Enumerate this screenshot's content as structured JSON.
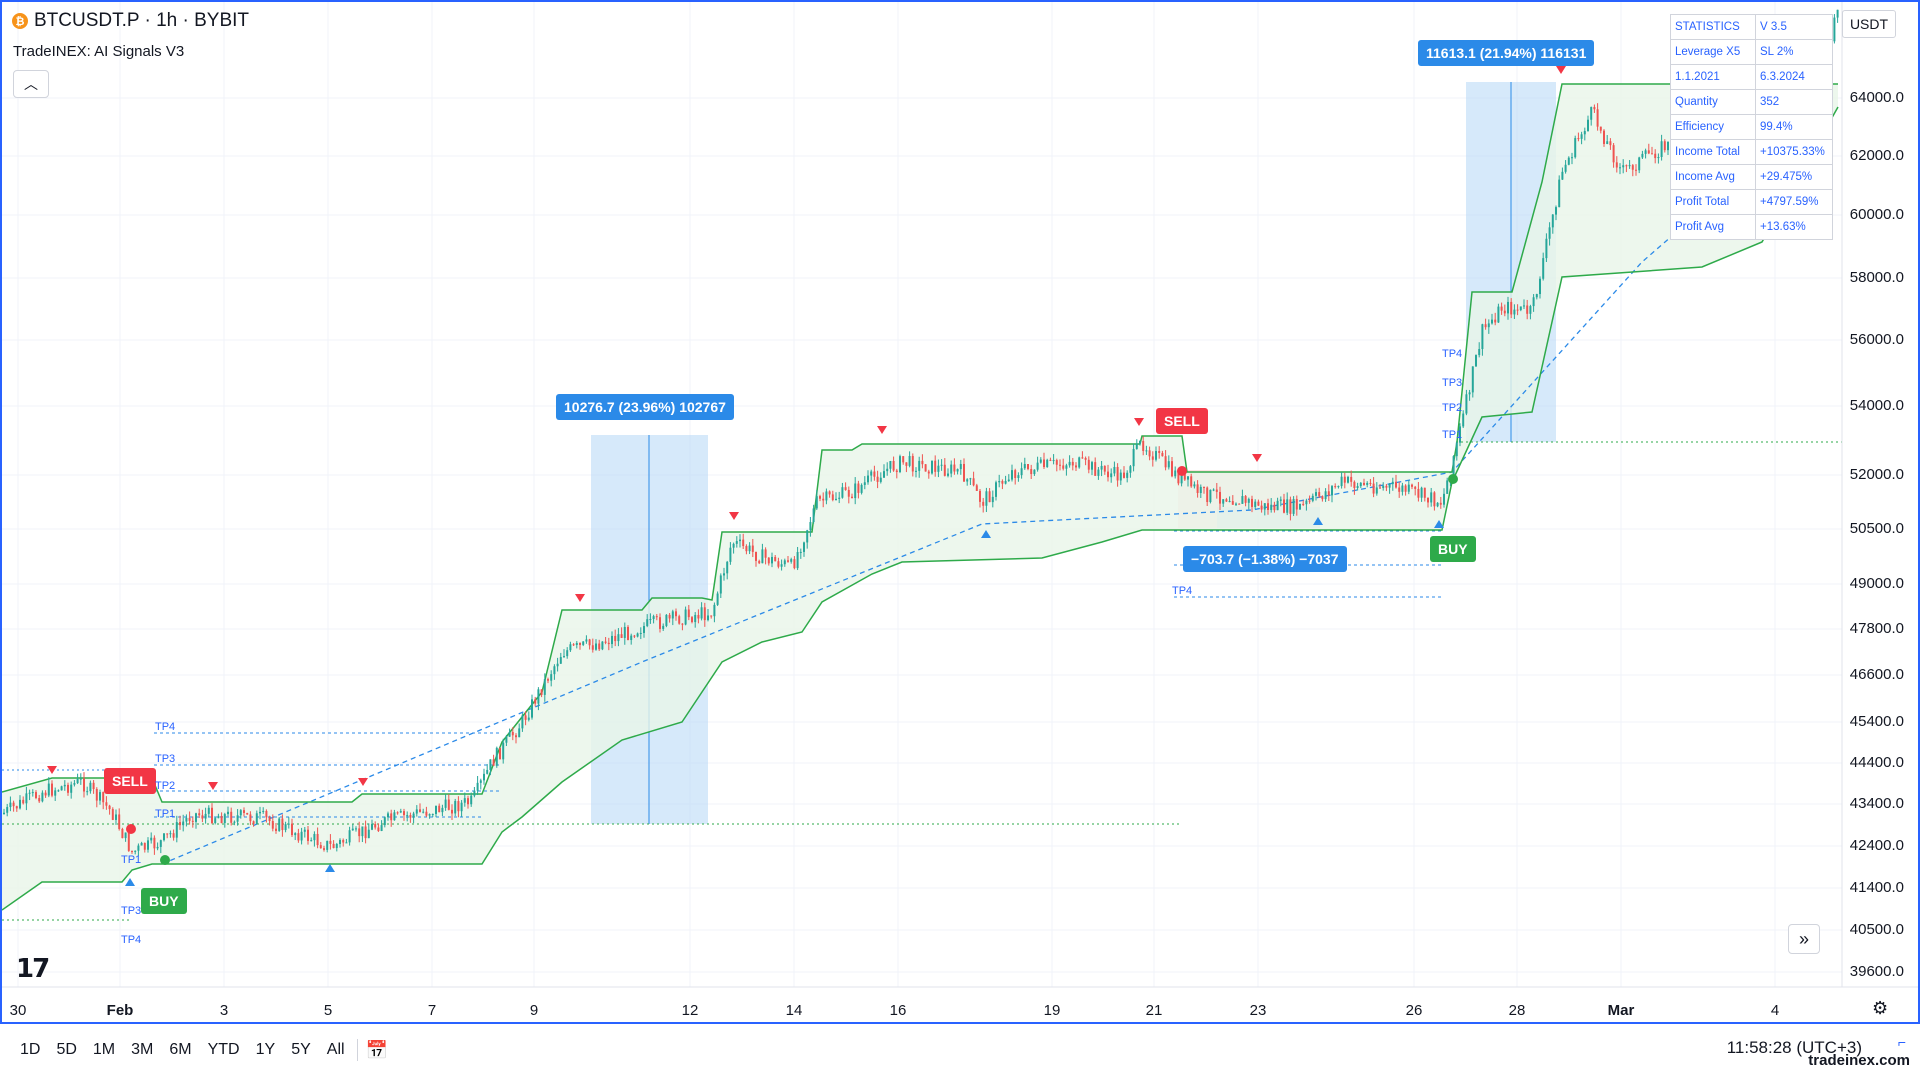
{
  "header": {
    "symbol": "BTCUSDT.P · 1h · BYBIT",
    "coin_letter": "₿",
    "indicator": "TradeINEX: AI Signals V3",
    "collapse_icon": "chevron-up-icon"
  },
  "currency_button": "USDT",
  "stats": [
    [
      "STATISTICS",
      "V 3.5"
    ],
    [
      "Leverage X5",
      "SL 2%"
    ],
    [
      "1.1.2021",
      "6.3.2024"
    ],
    [
      "Quantity",
      "352"
    ],
    [
      "Efficiency",
      "99.4%"
    ],
    [
      "Income Total",
      "+10375.33%"
    ],
    [
      "Income Avg",
      "+29.475%"
    ],
    [
      "Profit Total",
      "+4797.59%"
    ],
    [
      "Profit Avg",
      "+13.63%"
    ]
  ],
  "price_axis": [
    "64000.0",
    "62000.0",
    "60000.0",
    "58000.0",
    "56000.0",
    "54000.0",
    "52000.0",
    "50500.0",
    "49000.0",
    "47800.0",
    "46600.0",
    "45400.0",
    "44400.0",
    "43400.0",
    "42400.0",
    "41400.0",
    "40500.0",
    "39600.0"
  ],
  "time_axis": [
    "30",
    "Feb",
    "3",
    "5",
    "7",
    "9",
    "12",
    "14",
    "16",
    "19",
    "21",
    "23",
    "26",
    "28",
    "Mar",
    "4"
  ],
  "signals": {
    "sell": "SELL",
    "buy": "BUY"
  },
  "trades": {
    "t1": "10276.7 (23.96%) 102767",
    "t2": "11613.1 (21.94%) 116131",
    "t3": "−703.7 (−1.38%) −7037"
  },
  "tp_labels": [
    "TP4",
    "TP3",
    "TP2",
    "TP1"
  ],
  "colors": {
    "up": "#26a69a",
    "down": "#ef5350",
    "trail": "#2eaa4a",
    "sell": "#f23645",
    "buy": "#2eaa4a",
    "info": "#2b8ae8",
    "accent": "#2962ff"
  },
  "footer": {
    "ranges": [
      "1D",
      "5D",
      "1M",
      "3M",
      "6M",
      "YTD",
      "1Y",
      "5Y",
      "All"
    ],
    "calendar_icon": "calendar-icon",
    "clock": "11:58:28 (UTC+3)",
    "watermark": "tradeinex.com"
  },
  "icons": {
    "expand": "double-chevron-right-icon",
    "settings": "gear-icon",
    "logo": "tradingview-logo"
  }
}
